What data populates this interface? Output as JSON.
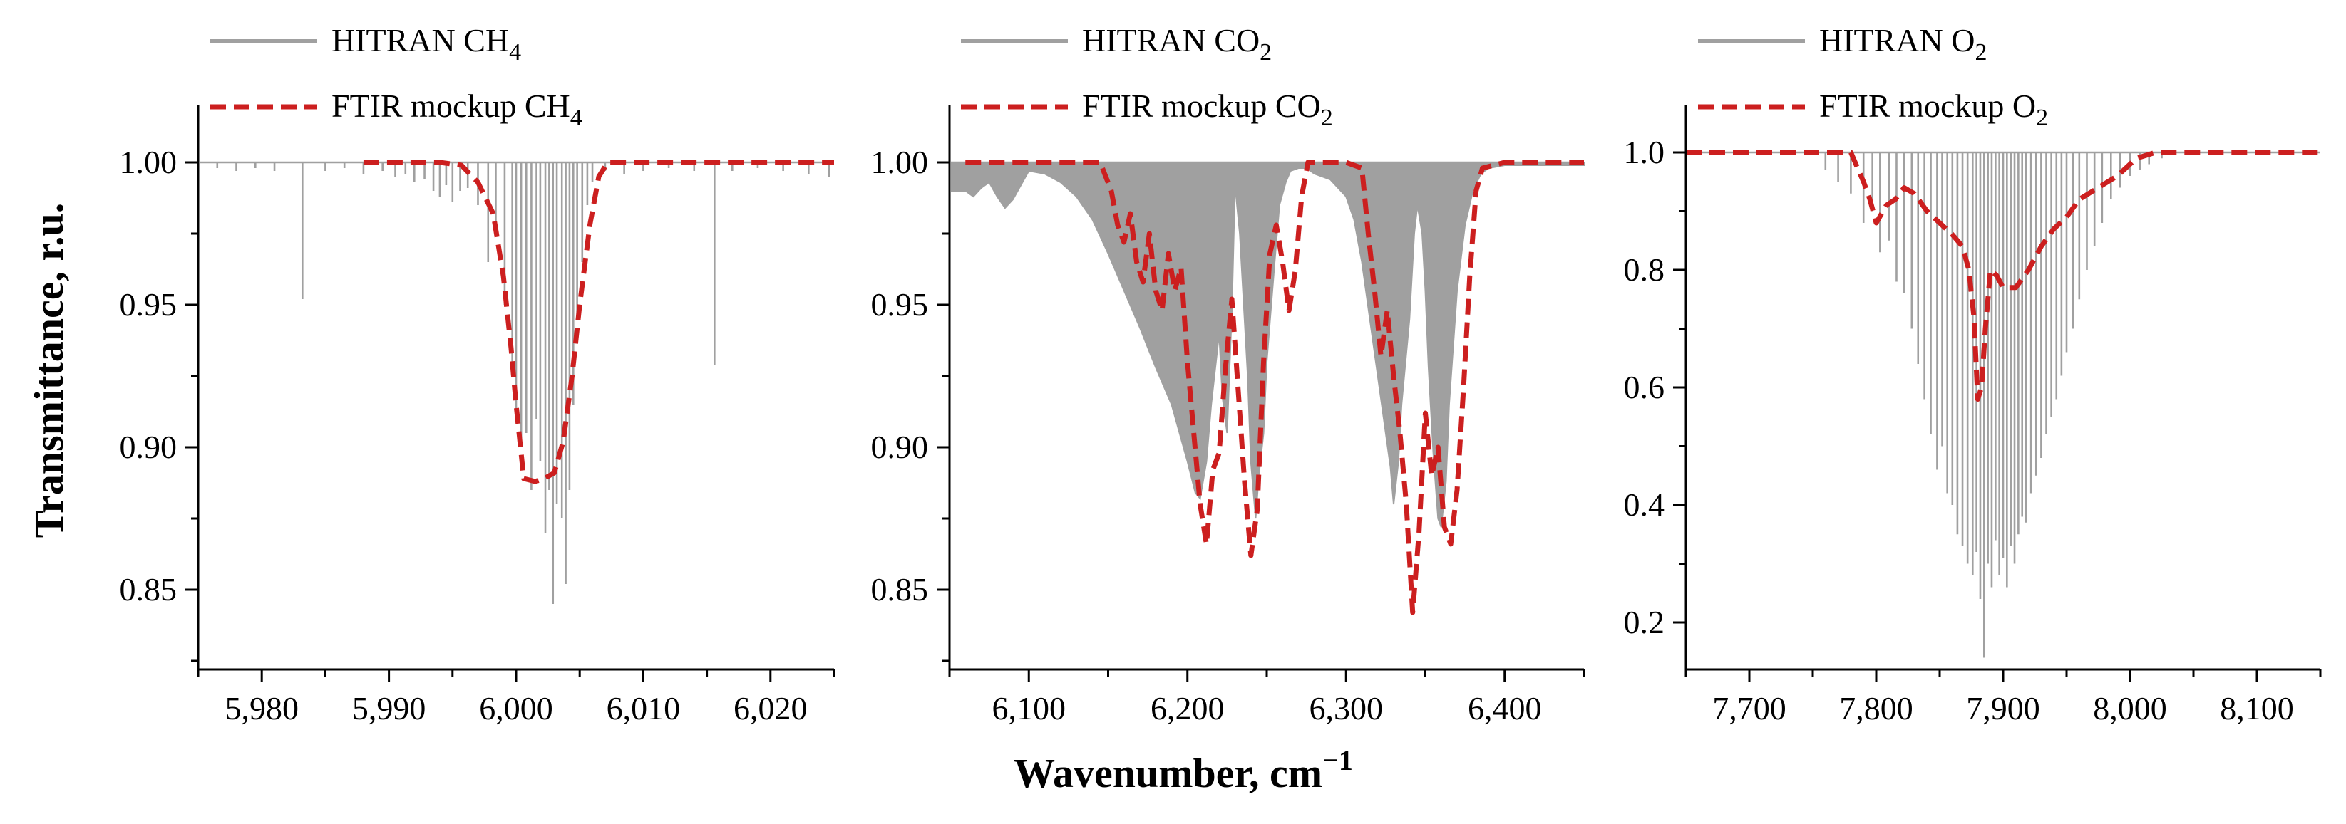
{
  "figure": {
    "ylabel": "Transmittance, r.u.",
    "xlabel": "Wavenumber, cm",
    "xlabel_sup": "−1"
  },
  "colors": {
    "hitran": "#a0a0a0",
    "ftir": "#cc1f1f"
  },
  "chart_data": [
    {
      "type": "line",
      "id": "ch4",
      "legend": [
        {
          "label_main": "HITRAN CH",
          "label_sub": "4"
        },
        {
          "label_main": "FTIR mockup CH",
          "label_sub": "4"
        }
      ],
      "xlim": [
        5975,
        6025
      ],
      "ylim": [
        0.822,
        1.02
      ],
      "xticks": [
        5980,
        5990,
        6000,
        6010,
        6020
      ],
      "xtick_labels": [
        "5,980",
        "5,990",
        "6,000",
        "6,010",
        "6,020"
      ],
      "yticks": [
        0.85,
        0.9,
        0.95,
        1.0
      ],
      "ytick_labels": [
        "0.85",
        "0.90",
        "0.95",
        "1.00"
      ],
      "series": [
        {
          "name": "HITRAN CH4",
          "style": "stick",
          "x": [
            5976.5,
            5978.0,
            5979.5,
            5981.0,
            5983.2,
            5985.0,
            5986.5,
            5988.0,
            5989.5,
            5990.5,
            5991.3,
            5992.0,
            5992.8,
            5993.5,
            5994.0,
            5994.5,
            5995.0,
            5995.6,
            5996.2,
            5997.0,
            5997.8,
            5998.4,
            5999.1,
            5999.7,
            6000.0,
            6000.4,
            6000.8,
            6001.2,
            6001.6,
            6001.9,
            6002.3,
            6002.6,
            6002.9,
            6003.2,
            6003.6,
            6003.9,
            6004.2,
            6004.5,
            6004.8,
            6005.2,
            6005.6,
            6006.0,
            6007.0,
            6008.5,
            6010.0,
            6012.0,
            6014.0,
            6015.6,
            6017.0,
            6019.0,
            6021.0,
            6023.0,
            6024.6
          ],
          "y": [
            0.998,
            0.997,
            0.998,
            0.997,
            0.952,
            0.997,
            0.998,
            0.996,
            0.997,
            0.995,
            0.996,
            0.993,
            0.994,
            0.99,
            0.988,
            0.992,
            0.986,
            0.99,
            0.991,
            0.985,
            0.965,
            0.975,
            0.95,
            0.93,
            0.913,
            0.9,
            0.905,
            0.885,
            0.91,
            0.895,
            0.87,
            0.885,
            0.845,
            0.88,
            0.875,
            0.852,
            0.885,
            0.915,
            0.945,
            0.965,
            0.985,
            0.993,
            0.997,
            0.996,
            0.997,
            0.998,
            0.997,
            0.929,
            0.997,
            0.998,
            0.997,
            0.996,
            0.995
          ]
        },
        {
          "name": "FTIR mockup CH4",
          "style": "dashed",
          "x": [
            5988.0,
            5994.0,
            5995.7,
            5997.0,
            5998.2,
            5999.0,
            5999.6,
            6000.0,
            6000.6,
            6001.5,
            6002.2,
            6003.0,
            6003.7,
            6004.4,
            6005.0,
            6005.8,
            6006.5,
            6007.2,
            6008.0,
            6020.0,
            6025.0
          ],
          "y": [
            1.0,
            1.0,
            0.999,
            0.993,
            0.982,
            0.96,
            0.935,
            0.915,
            0.889,
            0.888,
            0.889,
            0.891,
            0.902,
            0.925,
            0.95,
            0.978,
            0.995,
            1.0,
            1.0,
            1.0,
            1.0
          ]
        }
      ]
    },
    {
      "type": "line",
      "id": "co2",
      "legend": [
        {
          "label_main": "HITRAN CO",
          "label_sub": "2"
        },
        {
          "label_main": "FTIR mockup CO",
          "label_sub": "2"
        }
      ],
      "xlim": [
        6050,
        6450
      ],
      "ylim": [
        0.822,
        1.02
      ],
      "xticks": [
        6100,
        6200,
        6300,
        6400
      ],
      "xtick_labels": [
        "6,100",
        "6,200",
        "6,300",
        "6,400"
      ],
      "yticks": [
        0.85,
        0.9,
        0.95,
        1.0
      ],
      "ytick_labels": [
        "0.85",
        "0.90",
        "0.95",
        "1.00"
      ],
      "series": [
        {
          "name": "HITRAN CO2",
          "style": "envelope",
          "x": [
            6050,
            6060,
            6065,
            6070,
            6075,
            6080,
            6085,
            6090,
            6095,
            6100,
            6110,
            6120,
            6130,
            6140,
            6150,
            6160,
            6170,
            6180,
            6190,
            6195,
            6200,
            6205,
            6208,
            6212,
            6215,
            6220,
            6222,
            6225,
            6228,
            6230,
            6233,
            6235,
            6238,
            6240,
            6243,
            6245,
            6248,
            6250,
            6255,
            6258,
            6262,
            6265,
            6270,
            6275,
            6280,
            6290,
            6300,
            6305,
            6310,
            6315,
            6320,
            6325,
            6328,
            6330,
            6333,
            6335,
            6340,
            6343,
            6345,
            6348,
            6350,
            6352,
            6355,
            6358,
            6360,
            6363,
            6365,
            6370,
            6375,
            6380,
            6385,
            6390,
            6400,
            6450
          ],
          "y": [
            0.99,
            0.99,
            0.988,
            0.991,
            0.993,
            0.988,
            0.984,
            0.987,
            0.992,
            0.997,
            0.996,
            0.993,
            0.988,
            0.98,
            0.968,
            0.955,
            0.942,
            0.928,
            0.915,
            0.905,
            0.895,
            0.884,
            0.882,
            0.895,
            0.915,
            0.94,
            0.918,
            0.905,
            0.948,
            0.992,
            0.975,
            0.955,
            0.925,
            0.895,
            0.875,
            0.89,
            0.905,
            0.93,
            0.965,
            0.985,
            0.993,
            0.997,
            0.998,
            0.998,
            0.996,
            0.994,
            0.988,
            0.98,
            0.965,
            0.945,
            0.925,
            0.905,
            0.893,
            0.88,
            0.895,
            0.915,
            0.945,
            0.975,
            0.985,
            0.975,
            0.955,
            0.928,
            0.898,
            0.875,
            0.872,
            0.888,
            0.915,
            0.955,
            0.978,
            0.99,
            0.996,
            0.998,
            0.999,
            0.999
          ]
        },
        {
          "name": "FTIR mockup CO2",
          "style": "dashed",
          "x": [
            6060,
            6145,
            6152,
            6156,
            6160,
            6164,
            6168,
            6172,
            6176,
            6180,
            6184,
            6188,
            6192,
            6196,
            6200,
            6204,
            6208,
            6212,
            6216,
            6220,
            6224,
            6228,
            6232,
            6236,
            6240,
            6244,
            6248,
            6252,
            6256,
            6260,
            6264,
            6268,
            6272,
            6276,
            6280,
            6290,
            6300,
            6310,
            6314,
            6318,
            6322,
            6326,
            6330,
            6334,
            6338,
            6342,
            6346,
            6350,
            6354,
            6358,
            6362,
            6366,
            6370,
            6374,
            6378,
            6382,
            6386,
            6400,
            6450
          ],
          "y": [
            1.0,
            1.0,
            0.99,
            0.978,
            0.972,
            0.982,
            0.965,
            0.958,
            0.975,
            0.955,
            0.948,
            0.968,
            0.955,
            0.963,
            0.93,
            0.905,
            0.88,
            0.866,
            0.892,
            0.898,
            0.928,
            0.952,
            0.92,
            0.888,
            0.862,
            0.878,
            0.93,
            0.968,
            0.978,
            0.965,
            0.948,
            0.962,
            0.988,
            1.0,
            1.0,
            1.0,
            1.0,
            0.998,
            0.975,
            0.955,
            0.932,
            0.948,
            0.925,
            0.905,
            0.88,
            0.842,
            0.87,
            0.912,
            0.89,
            0.9,
            0.872,
            0.866,
            0.885,
            0.92,
            0.96,
            0.99,
            0.998,
            1.0,
            1.0
          ]
        }
      ]
    },
    {
      "type": "line",
      "id": "o2",
      "legend": [
        {
          "label_main": "HITRAN O",
          "label_sub": "2"
        },
        {
          "label_main": "FTIR mockup O",
          "label_sub": "2"
        }
      ],
      "xlim": [
        7650,
        8150
      ],
      "ylim": [
        0.12,
        1.08
      ],
      "xticks": [
        7700,
        7800,
        7900,
        8000,
        8100
      ],
      "xtick_labels": [
        "7,700",
        "7,800",
        "7,900",
        "8,000",
        "8,100"
      ],
      "yticks": [
        0.2,
        0.4,
        0.6,
        0.8,
        1.0
      ],
      "ytick_labels": [
        "0.2",
        "0.4",
        "0.6",
        "0.8",
        "1.0"
      ],
      "series": [
        {
          "name": "HITRAN O2",
          "style": "stick",
          "x": [
            7760,
            7770,
            7780,
            7790,
            7797,
            7803,
            7810,
            7816,
            7822,
            7828,
            7833,
            7838,
            7843,
            7848,
            7852,
            7856,
            7860,
            7864,
            7868,
            7872,
            7876,
            7879,
            7882,
            7885,
            7888,
            7891,
            7894,
            7897,
            7900,
            7903,
            7906,
            7909,
            7912,
            7915,
            7918,
            7922,
            7926,
            7930,
            7934,
            7938,
            7942,
            7946,
            7950,
            7955,
            7960,
            7966,
            7972,
            7978,
            7985,
            7992,
            8000,
            8008,
            8015,
            8025
          ],
          "y": [
            0.97,
            0.95,
            0.93,
            0.88,
            0.9,
            0.83,
            0.85,
            0.78,
            0.76,
            0.7,
            0.64,
            0.58,
            0.52,
            0.46,
            0.5,
            0.42,
            0.4,
            0.35,
            0.33,
            0.3,
            0.28,
            0.32,
            0.24,
            0.14,
            0.3,
            0.26,
            0.34,
            0.28,
            0.31,
            0.26,
            0.33,
            0.3,
            0.35,
            0.38,
            0.37,
            0.42,
            0.45,
            0.48,
            0.52,
            0.55,
            0.58,
            0.62,
            0.66,
            0.7,
            0.75,
            0.8,
            0.84,
            0.88,
            0.92,
            0.94,
            0.96,
            0.97,
            0.98,
            0.99
          ]
        },
        {
          "name": "FTIR mockup O2",
          "style": "dashed",
          "x": [
            7650,
            7780,
            7790,
            7795,
            7800,
            7808,
            7815,
            7822,
            7830,
            7840,
            7850,
            7860,
            7868,
            7873,
            7877,
            7880,
            7883,
            7886,
            7890,
            7895,
            7900,
            7910,
            7920,
            7930,
            7940,
            7950,
            7960,
            7975,
            7990,
            8005,
            8020,
            8050,
            8150
          ],
          "y": [
            1.0,
            1.0,
            0.95,
            0.92,
            0.88,
            0.91,
            0.92,
            0.94,
            0.93,
            0.9,
            0.88,
            0.86,
            0.84,
            0.8,
            0.72,
            0.58,
            0.6,
            0.7,
            0.8,
            0.79,
            0.77,
            0.77,
            0.8,
            0.84,
            0.87,
            0.89,
            0.92,
            0.94,
            0.96,
            0.99,
            1.0,
            1.0,
            1.0
          ]
        }
      ]
    }
  ]
}
